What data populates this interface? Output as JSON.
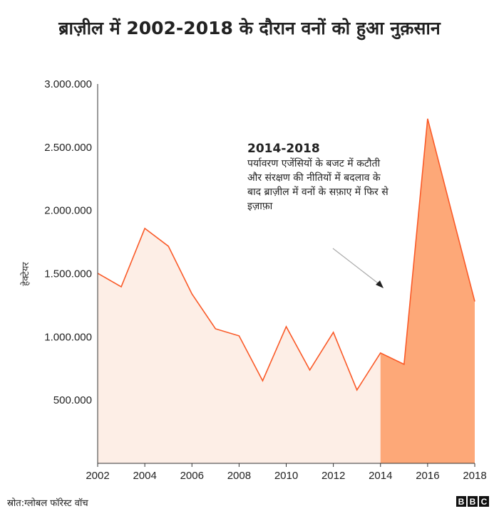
{
  "chart_data": {
    "type": "area",
    "title": "ब्राज़ील में 2002-2018 के दौरान वनों को हुआ नुक़सान",
    "ylabel": "हेक्टेयर",
    "xlabel": "",
    "x": [
      2002,
      2003,
      2004,
      2005,
      2006,
      2007,
      2008,
      2009,
      2010,
      2011,
      2012,
      2013,
      2014,
      2015,
      2016,
      2017,
      2018
    ],
    "values": [
      1503000,
      1396000,
      1858000,
      1717000,
      1340000,
      1064000,
      1008000,
      653000,
      1081000,
      738000,
      1036000,
      580000,
      873000,
      783000,
      2725000,
      2000000,
      1280000
    ],
    "highlight_range": [
      2014,
      2018
    ],
    "ylim": [
      0,
      3000000
    ],
    "xlim": [
      2002,
      2018
    ],
    "y_ticks": [
      "500.000",
      "1.000.000",
      "1.500.000",
      "2.000.000",
      "2.500.000",
      "3.000.000"
    ],
    "y_tick_values": [
      500000,
      1000000,
      1500000,
      2000000,
      2500000,
      3000000
    ],
    "x_ticks": [
      "2002",
      "2004",
      "2006",
      "2008",
      "2010",
      "2012",
      "2014",
      "2016",
      "2018"
    ],
    "grid": false,
    "colors": {
      "line": "#fa5a28",
      "fill": "#fdeee6",
      "highlight_fill": "#fda878",
      "axis": "#333333"
    },
    "annotation": {
      "heading": "2014-2018",
      "text": "पर्यावरण एजेंसियों के बजट में कटौती और संरक्षण की नीतियों में बदलाव के बाद ब्राज़ील में वनों के सफ़ाए में फिर से इज़ाफ़ा"
    }
  },
  "footer": {
    "source": "स्रोत:ग्लोबल फॉरेस्ट वॉच",
    "logo": [
      "B",
      "B",
      "C"
    ]
  }
}
